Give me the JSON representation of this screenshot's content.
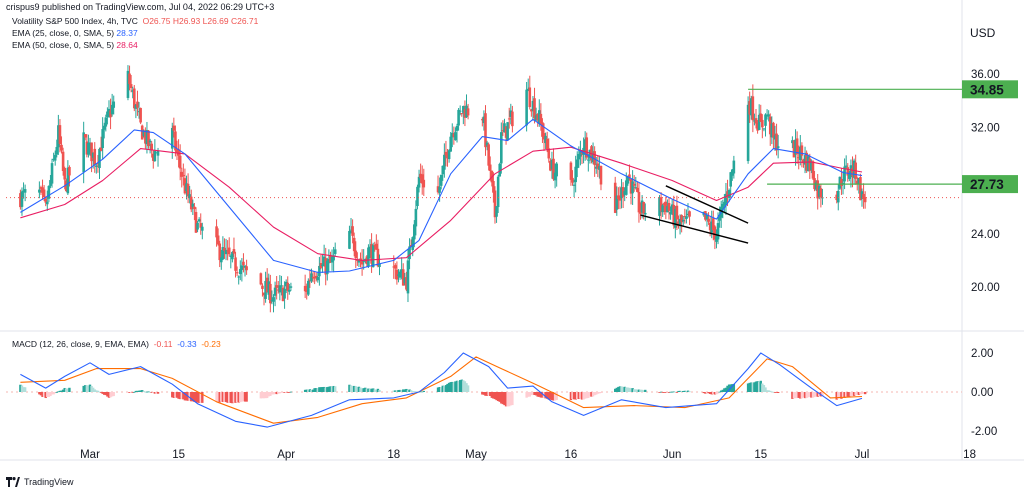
{
  "header": {
    "published": "crispus9 published on TradingView.com, Jul 04, 2022 06:29 UTC+3"
  },
  "legend": {
    "symbol": "Volatility S&P 500 Index, 4h, TVC",
    "ohlc": "O26.75  H26.93  L26.69  C26.71",
    "ema1_label": "EMA (25, close, 0, SMA, 5)",
    "ema1_value": "28.37",
    "ema2_label": "EMA (50, close, 0, SMA, 5)",
    "ema2_value": "28.64",
    "macd_label": "MACD (12, 26, close, 9, EMA, EMA)",
    "macd_hist": "-0.11",
    "macd_line": "-0.33",
    "macd_signal": "-0.23"
  },
  "footer": {
    "brand": "TradingView"
  },
  "colors": {
    "up": "#26a69a",
    "down": "#ef5350",
    "ema25": "#2962ff",
    "ema50": "#e91e63",
    "macd": "#2962ff",
    "signal": "#ff6d00",
    "level": "#4caf50",
    "trend": "#000000",
    "hist_up_strong": "#26a69a",
    "hist_up_weak": "#b2dfdb",
    "hist_down_strong": "#ef5350",
    "hist_down_weak": "#ffcdd2"
  },
  "chart_data": [
    {
      "type": "candlestick",
      "title": "Volatility S&P 500 Index, 4h, TVC",
      "y_unit": "USD",
      "ylim": [
        16,
        38
      ],
      "y_ticks": [
        "36.00",
        "32.00",
        "28.00",
        "24.00",
        "20.00"
      ],
      "x_ticks": [
        "Mar",
        "15",
        "Apr",
        "18",
        "May",
        "16",
        "Jun",
        "15",
        "Jul",
        "18"
      ],
      "close_path": [
        {
          "date": "2022-02-18",
          "v": 26.8
        },
        {
          "date": "2022-02-21",
          "v": 27.0
        },
        {
          "date": "2022-02-22",
          "v": 25.8
        },
        {
          "date": "2022-02-24",
          "v": 31.5
        },
        {
          "date": "2022-02-25",
          "v": 27.6
        },
        {
          "date": "2022-02-28",
          "v": 31.0
        },
        {
          "date": "2022-03-02",
          "v": 29.5
        },
        {
          "date": "2022-03-04",
          "v": 33.0
        },
        {
          "date": "2022-03-07",
          "v": 35.8
        },
        {
          "date": "2022-03-09",
          "v": 32.0
        },
        {
          "date": "2022-03-11",
          "v": 30.0
        },
        {
          "date": "2022-03-14",
          "v": 31.5
        },
        {
          "date": "2022-03-16",
          "v": 27.5
        },
        {
          "date": "2022-03-18",
          "v": 24.5
        },
        {
          "date": "2022-03-22",
          "v": 22.5
        },
        {
          "date": "2022-03-25",
          "v": 21.3
        },
        {
          "date": "2022-03-28",
          "v": 20.2
        },
        {
          "date": "2022-03-30",
          "v": 19.3
        },
        {
          "date": "2022-04-01",
          "v": 19.8
        },
        {
          "date": "2022-04-04",
          "v": 19.5
        },
        {
          "date": "2022-04-05",
          "v": 21.2
        },
        {
          "date": "2022-04-08",
          "v": 21.7
        },
        {
          "date": "2022-04-11",
          "v": 24.0
        },
        {
          "date": "2022-04-13",
          "v": 21.8
        },
        {
          "date": "2022-04-14",
          "v": 22.7
        },
        {
          "date": "2022-04-18",
          "v": 21.3
        },
        {
          "date": "2022-04-20",
          "v": 20.5
        },
        {
          "date": "2022-04-22",
          "v": 28.2
        },
        {
          "date": "2022-04-25",
          "v": 27.0
        },
        {
          "date": "2022-04-27",
          "v": 31.5
        },
        {
          "date": "2022-04-29",
          "v": 33.4
        },
        {
          "date": "2022-05-02",
          "v": 33.0
        },
        {
          "date": "2022-05-04",
          "v": 25.4
        },
        {
          "date": "2022-05-05",
          "v": 31.2
        },
        {
          "date": "2022-05-09",
          "v": 34.8
        },
        {
          "date": "2022-05-11",
          "v": 32.6
        },
        {
          "date": "2022-05-13",
          "v": 28.9
        },
        {
          "date": "2022-05-16",
          "v": 27.5
        },
        {
          "date": "2022-05-18",
          "v": 30.9
        },
        {
          "date": "2022-05-20",
          "v": 29.4
        },
        {
          "date": "2022-05-23",
          "v": 25.8
        },
        {
          "date": "2022-05-25",
          "v": 28.4
        },
        {
          "date": "2022-05-27",
          "v": 25.7
        },
        {
          "date": "2022-05-31",
          "v": 26.2
        },
        {
          "date": "2022-06-02",
          "v": 24.7
        },
        {
          "date": "2022-06-06",
          "v": 25.1
        },
        {
          "date": "2022-06-08",
          "v": 24.0
        },
        {
          "date": "2022-06-10",
          "v": 27.8
        },
        {
          "date": "2022-06-13",
          "v": 34.0
        },
        {
          "date": "2022-06-15",
          "v": 32.0
        },
        {
          "date": "2022-06-16",
          "v": 33.0
        },
        {
          "date": "2022-06-17",
          "v": 31.0
        },
        {
          "date": "2022-06-21",
          "v": 30.2
        },
        {
          "date": "2022-06-23",
          "v": 29.0
        },
        {
          "date": "2022-06-24",
          "v": 27.2
        },
        {
          "date": "2022-06-27",
          "v": 27.2
        },
        {
          "date": "2022-06-28",
          "v": 28.4
        },
        {
          "date": "2022-06-29",
          "v": 28.8
        },
        {
          "date": "2022-06-30",
          "v": 28.7
        },
        {
          "date": "2022-07-01",
          "v": 26.7
        }
      ],
      "ema25_path": [
        {
          "date": "2022-02-18",
          "v": 25.6
        },
        {
          "date": "2022-02-25",
          "v": 27.6
        },
        {
          "date": "2022-03-03",
          "v": 29.6
        },
        {
          "date": "2022-03-08",
          "v": 31.8
        },
        {
          "date": "2022-03-11",
          "v": 31.6
        },
        {
          "date": "2022-03-16",
          "v": 30.0
        },
        {
          "date": "2022-03-23",
          "v": 26.0
        },
        {
          "date": "2022-03-30",
          "v": 22.0
        },
        {
          "date": "2022-04-06",
          "v": 21.1
        },
        {
          "date": "2022-04-11",
          "v": 21.2
        },
        {
          "date": "2022-04-18",
          "v": 22.0
        },
        {
          "date": "2022-04-22",
          "v": 23.5
        },
        {
          "date": "2022-04-27",
          "v": 28.5
        },
        {
          "date": "2022-05-02",
          "v": 31.3
        },
        {
          "date": "2022-05-06",
          "v": 31.0
        },
        {
          "date": "2022-05-10",
          "v": 32.6
        },
        {
          "date": "2022-05-16",
          "v": 30.6
        },
        {
          "date": "2022-05-24",
          "v": 28.5
        },
        {
          "date": "2022-06-01",
          "v": 26.6
        },
        {
          "date": "2022-06-08",
          "v": 25.1
        },
        {
          "date": "2022-06-13",
          "v": 28.5
        },
        {
          "date": "2022-06-17",
          "v": 30.4
        },
        {
          "date": "2022-06-22",
          "v": 30.0
        },
        {
          "date": "2022-06-28",
          "v": 28.6
        },
        {
          "date": "2022-07-01",
          "v": 28.37
        }
      ],
      "ema50_path": [
        {
          "date": "2022-02-18",
          "v": 25.2
        },
        {
          "date": "2022-02-25",
          "v": 26.2
        },
        {
          "date": "2022-03-03",
          "v": 28.0
        },
        {
          "date": "2022-03-09",
          "v": 30.4
        },
        {
          "date": "2022-03-16",
          "v": 30.0
        },
        {
          "date": "2022-03-23",
          "v": 27.5
        },
        {
          "date": "2022-03-30",
          "v": 24.5
        },
        {
          "date": "2022-04-06",
          "v": 22.5
        },
        {
          "date": "2022-04-13",
          "v": 22.0
        },
        {
          "date": "2022-04-20",
          "v": 22.2
        },
        {
          "date": "2022-04-27",
          "v": 25.0
        },
        {
          "date": "2022-05-04",
          "v": 28.5
        },
        {
          "date": "2022-05-10",
          "v": 30.2
        },
        {
          "date": "2022-05-16",
          "v": 30.5
        },
        {
          "date": "2022-05-24",
          "v": 29.3
        },
        {
          "date": "2022-06-01",
          "v": 28.0
        },
        {
          "date": "2022-06-08",
          "v": 26.5
        },
        {
          "date": "2022-06-13",
          "v": 27.5
        },
        {
          "date": "2022-06-17",
          "v": 29.3
        },
        {
          "date": "2022-06-23",
          "v": 29.4
        },
        {
          "date": "2022-06-28",
          "v": 28.9
        },
        {
          "date": "2022-07-01",
          "v": 28.64
        }
      ],
      "levels": [
        {
          "label": "34.85",
          "value": 34.85,
          "from": "2022-06-13",
          "to": "2022-07-08",
          "color": "#4caf50"
        },
        {
          "label": "27.73",
          "value": 27.73,
          "from": "2022-06-16",
          "to": "2022-07-08",
          "color": "#4caf50"
        }
      ],
      "dotted_last_price": 26.71,
      "trendlines": [
        {
          "from": {
            "date": "2022-05-31",
            "v": 27.6
          },
          "to": {
            "date": "2022-06-13",
            "v": 24.8
          }
        },
        {
          "from": {
            "date": "2022-05-27",
            "v": 25.4
          },
          "to": {
            "date": "2022-06-13",
            "v": 23.3
          }
        }
      ]
    },
    {
      "type": "line",
      "title": "MACD (12, 26, close, 9, EMA, EMA)",
      "ylim": [
        -2.4,
        2.4
      ],
      "y_ticks": [
        "2.00",
        "0.00",
        "-2.00"
      ],
      "series": [
        {
          "name": "MACD",
          "color": "#2962ff",
          "path": [
            {
              "date": "2022-02-18",
              "v": 0.9
            },
            {
              "date": "2022-02-22",
              "v": 0.2
            },
            {
              "date": "2022-02-25",
              "v": 0.8
            },
            {
              "date": "2022-03-01",
              "v": 1.5
            },
            {
              "date": "2022-03-04",
              "v": 0.9
            },
            {
              "date": "2022-03-09",
              "v": 1.3
            },
            {
              "date": "2022-03-14",
              "v": 0.4
            },
            {
              "date": "2022-03-18",
              "v": -0.6
            },
            {
              "date": "2022-03-24",
              "v": -1.5
            },
            {
              "date": "2022-03-29",
              "v": -1.8
            },
            {
              "date": "2022-04-05",
              "v": -1.2
            },
            {
              "date": "2022-04-11",
              "v": -0.4
            },
            {
              "date": "2022-04-18",
              "v": -0.3
            },
            {
              "date": "2022-04-22",
              "v": 0.0
            },
            {
              "date": "2022-04-26",
              "v": 1.0
            },
            {
              "date": "2022-04-29",
              "v": 2.0
            },
            {
              "date": "2022-05-03",
              "v": 1.3
            },
            {
              "date": "2022-05-06",
              "v": 0.2
            },
            {
              "date": "2022-05-10",
              "v": 0.3
            },
            {
              "date": "2022-05-13",
              "v": -0.5
            },
            {
              "date": "2022-05-18",
              "v": -1.2
            },
            {
              "date": "2022-05-24",
              "v": -0.4
            },
            {
              "date": "2022-05-31",
              "v": -0.8
            },
            {
              "date": "2022-06-08",
              "v": -0.6
            },
            {
              "date": "2022-06-13",
              "v": 1.2
            },
            {
              "date": "2022-06-15",
              "v": 2.0
            },
            {
              "date": "2022-06-18",
              "v": 1.4
            },
            {
              "date": "2022-06-23",
              "v": 0.2
            },
            {
              "date": "2022-06-27",
              "v": -0.7
            },
            {
              "date": "2022-07-01",
              "v": -0.33
            }
          ]
        },
        {
          "name": "Signal",
          "color": "#ff6d00",
          "path": [
            {
              "date": "2022-02-18",
              "v": 0.5
            },
            {
              "date": "2022-02-25",
              "v": 0.6
            },
            {
              "date": "2022-03-02",
              "v": 1.2
            },
            {
              "date": "2022-03-09",
              "v": 1.2
            },
            {
              "date": "2022-03-14",
              "v": 0.7
            },
            {
              "date": "2022-03-21",
              "v": -0.5
            },
            {
              "date": "2022-03-30",
              "v": -1.6
            },
            {
              "date": "2022-04-06",
              "v": -1.3
            },
            {
              "date": "2022-04-13",
              "v": -0.6
            },
            {
              "date": "2022-04-20",
              "v": -0.3
            },
            {
              "date": "2022-04-27",
              "v": 0.8
            },
            {
              "date": "2022-05-01",
              "v": 1.8
            },
            {
              "date": "2022-05-05",
              "v": 1.2
            },
            {
              "date": "2022-05-11",
              "v": 0.3
            },
            {
              "date": "2022-05-18",
              "v": -0.8
            },
            {
              "date": "2022-05-26",
              "v": -0.7
            },
            {
              "date": "2022-06-03",
              "v": -0.8
            },
            {
              "date": "2022-06-10",
              "v": -0.3
            },
            {
              "date": "2022-06-16",
              "v": 1.7
            },
            {
              "date": "2022-06-20",
              "v": 1.3
            },
            {
              "date": "2022-06-26",
              "v": -0.3
            },
            {
              "date": "2022-07-01",
              "v": -0.23
            }
          ]
        }
      ]
    }
  ]
}
